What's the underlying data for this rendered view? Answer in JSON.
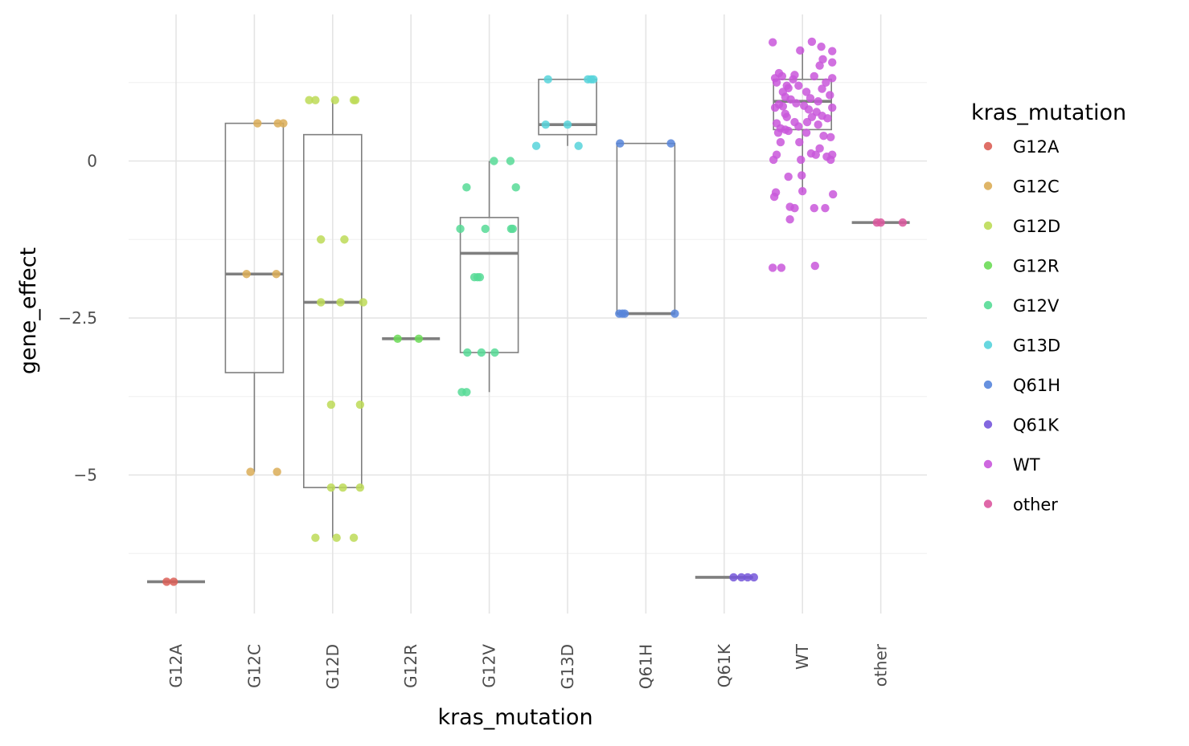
{
  "chart_data": {
    "type": "box+jitter",
    "xlabel": "kras_mutation",
    "ylabel": "gene_effect",
    "ylim": [
      -7.12,
      2.35
    ],
    "y_ticks": [
      0,
      -2.5,
      -5
    ],
    "y_tick_labels": [
      "0",
      "−2.5",
      "−5"
    ],
    "grid": true,
    "legend": {
      "title": "kras_mutation",
      "placement": "right"
    },
    "categories": [
      "G12A",
      "G12C",
      "G12D",
      "G12R",
      "G12V",
      "G13D",
      "Q61H",
      "Q61K",
      "WT",
      "other"
    ],
    "colors": {
      "G12A": "#db5f57",
      "G12C": "#dbad57",
      "G12D": "#bddb57",
      "G12R": "#6cdb57",
      "G12V": "#57db96",
      "G13D": "#57d3db",
      "Q61H": "#5785db",
      "Q61K": "#7657db",
      "WT": "#c957db",
      "other": "#db579e"
    },
    "boxes": [
      {
        "category": "G12A",
        "q1": -6.7,
        "median": -6.7,
        "q3": -6.7,
        "lo": -6.7,
        "hi": -6.7
      },
      {
        "category": "G12C",
        "q1": -3.37,
        "median": -1.8,
        "q3": 0.6,
        "lo": -4.95,
        "hi": 0.6
      },
      {
        "category": "G12D",
        "q1": -5.2,
        "median": -2.25,
        "q3": 0.42,
        "lo": -6.0,
        "hi": 0.97
      },
      {
        "category": "G12R",
        "q1": -2.83,
        "median": -2.83,
        "q3": -2.83,
        "lo": -2.83,
        "hi": -2.83
      },
      {
        "category": "G12V",
        "q1": -3.05,
        "median": -1.47,
        "q3": -0.9,
        "lo": -3.68,
        "hi": 0.0
      },
      {
        "category": "G13D",
        "q1": 0.42,
        "median": 0.58,
        "q3": 1.3,
        "lo": 0.24,
        "hi": 1.3
      },
      {
        "category": "Q61H",
        "q1": -2.43,
        "median": -2.43,
        "q3": 0.28,
        "lo": -2.43,
        "hi": 0.28
      },
      {
        "category": "Q61K",
        "q1": -6.63,
        "median": -6.63,
        "q3": -6.63,
        "lo": -6.63,
        "hi": -6.63
      },
      {
        "category": "WT",
        "q1": 0.5,
        "median": 0.95,
        "q3": 1.3,
        "lo": -0.5,
        "hi": 1.8
      },
      {
        "category": "other",
        "q1": -0.98,
        "median": -0.98,
        "q3": -0.98,
        "lo": -0.98,
        "hi": -0.98
      }
    ],
    "points": {
      "G12A": [
        [
          -0.12,
          -6.7
        ],
        [
          -0.03,
          -6.7
        ]
      ],
      "G12C": [
        [
          -0.1,
          -1.8
        ],
        [
          0.04,
          0.6
        ],
        [
          -0.05,
          -4.95
        ],
        [
          0.28,
          -1.8
        ],
        [
          0.3,
          0.6
        ],
        [
          0.37,
          0.6
        ],
        [
          0.29,
          -4.95
        ]
      ],
      "G12D": [
        [
          -0.3,
          0.97
        ],
        [
          -0.22,
          0.97
        ],
        [
          -0.15,
          -1.25
        ],
        [
          -0.15,
          -2.25
        ],
        [
          -0.22,
          -6.0
        ],
        [
          -0.02,
          -3.88
        ],
        [
          -0.02,
          -5.2
        ],
        [
          0.03,
          0.97
        ],
        [
          0.05,
          -6.0
        ],
        [
          0.1,
          -2.25
        ],
        [
          0.13,
          -5.2
        ],
        [
          0.15,
          -1.25
        ],
        [
          0.27,
          0.97
        ],
        [
          0.29,
          0.97
        ],
        [
          0.27,
          -6.0
        ],
        [
          0.35,
          -3.88
        ],
        [
          0.35,
          -5.2
        ],
        [
          0.39,
          -2.25
        ]
      ],
      "G12R": [
        [
          -0.17,
          -2.83
        ],
        [
          0.1,
          -2.83
        ]
      ],
      "G12V": [
        [
          -0.37,
          -1.08
        ],
        [
          -0.29,
          -0.42
        ],
        [
          -0.28,
          -3.05
        ],
        [
          -0.35,
          -3.68
        ],
        [
          -0.29,
          -3.68
        ],
        [
          -0.19,
          -1.85
        ],
        [
          -0.15,
          -1.85
        ],
        [
          -0.12,
          -1.85
        ],
        [
          -0.1,
          -3.05
        ],
        [
          -0.05,
          -1.08
        ],
        [
          0.06,
          0.0
        ],
        [
          0.07,
          -3.05
        ],
        [
          0.27,
          0.0
        ],
        [
          0.28,
          -1.08
        ],
        [
          0.3,
          -1.08
        ],
        [
          0.34,
          -0.42
        ]
      ],
      "G13D": [
        [
          -0.4,
          0.24
        ],
        [
          -0.25,
          1.3
        ],
        [
          -0.28,
          0.58
        ],
        [
          0.0,
          0.58
        ],
        [
          0.14,
          0.24
        ],
        [
          0.26,
          1.3
        ],
        [
          0.3,
          1.3
        ],
        [
          0.33,
          1.3
        ]
      ],
      "Q61H": [
        [
          -0.33,
          0.28
        ],
        [
          -0.34,
          -2.43
        ],
        [
          -0.3,
          -2.43
        ],
        [
          -0.27,
          -2.43
        ],
        [
          0.32,
          0.28
        ],
        [
          0.37,
          -2.43
        ]
      ],
      "Q61K": [
        [
          0.12,
          -6.63
        ],
        [
          0.22,
          -6.63
        ],
        [
          0.3,
          -6.63
        ],
        [
          0.38,
          -6.63
        ]
      ],
      "WT": [
        [
          -0.38,
          1.89
        ],
        [
          -0.33,
          0.6
        ],
        [
          -0.37,
          0.02
        ],
        [
          -0.34,
          -0.5
        ],
        [
          -0.36,
          -0.57
        ],
        [
          -0.38,
          -1.7
        ],
        [
          -0.27,
          -1.7
        ],
        [
          -0.28,
          0.3
        ],
        [
          -0.31,
          0.45
        ],
        [
          -0.33,
          0.1
        ],
        [
          -0.26,
          1.35
        ],
        [
          -0.35,
          0.85
        ],
        [
          -0.25,
          0.87
        ],
        [
          -0.22,
          0.75
        ],
        [
          -0.18,
          1.16
        ],
        [
          -0.22,
          0.5
        ],
        [
          -0.16,
          -0.73
        ],
        [
          -0.1,
          1.37
        ],
        [
          -0.16,
          -0.93
        ],
        [
          -0.18,
          -0.25
        ],
        [
          -0.1,
          -0.75
        ],
        [
          -0.03,
          1.76
        ],
        [
          -0.04,
          0.3
        ],
        [
          -0.02,
          0.02
        ],
        [
          -0.01,
          -0.23
        ],
        [
          0.0,
          -0.48
        ],
        [
          0.05,
          0.45
        ],
        [
          0.12,
          1.9
        ],
        [
          0.11,
          0.12
        ],
        [
          0.17,
          0.1
        ],
        [
          0.15,
          -0.75
        ],
        [
          0.16,
          -1.67
        ],
        [
          0.22,
          1.52
        ],
        [
          0.24,
          1.82
        ],
        [
          0.26,
          1.62
        ],
        [
          0.27,
          0.4
        ],
        [
          0.31,
          0.07
        ],
        [
          0.36,
          0.02
        ],
        [
          0.38,
          0.1
        ],
        [
          0.38,
          1.32
        ],
        [
          0.38,
          1.57
        ],
        [
          0.38,
          1.75
        ],
        [
          0.38,
          0.85
        ],
        [
          0.39,
          -0.53
        ],
        [
          0.29,
          -0.75
        ],
        [
          0.36,
          0.38
        ],
        [
          -0.35,
          1.32
        ],
        [
          -0.3,
          1.4
        ],
        [
          -0.25,
          1.1
        ],
        [
          -0.2,
          1.2
        ],
        [
          -0.12,
          1.3
        ],
        [
          -0.05,
          1.2
        ],
        [
          0.05,
          1.1
        ],
        [
          0.1,
          1.0
        ],
        [
          0.15,
          1.35
        ],
        [
          0.2,
          0.95
        ],
        [
          0.25,
          1.15
        ],
        [
          0.3,
          1.25
        ],
        [
          0.35,
          1.05
        ],
        [
          -0.3,
          0.9
        ],
        [
          -0.22,
          1.02
        ],
        [
          -0.15,
          0.98
        ],
        [
          -0.08,
          0.92
        ],
        [
          0.02,
          0.88
        ],
        [
          0.08,
          0.82
        ],
        [
          0.18,
          0.78
        ],
        [
          0.25,
          0.72
        ],
        [
          0.32,
          0.68
        ],
        [
          -0.28,
          0.52
        ],
        [
          -0.18,
          0.48
        ],
        [
          -0.05,
          0.55
        ],
        [
          0.06,
          0.62
        ],
        [
          0.2,
          0.58
        ],
        [
          -0.33,
          1.25
        ],
        [
          -0.2,
          0.7
        ],
        [
          -0.1,
          0.62
        ],
        [
          0.12,
          0.7
        ],
        [
          0.22,
          0.2
        ]
      ],
      "other": [
        [
          -0.05,
          -0.98
        ],
        [
          0.0,
          -0.98
        ],
        [
          0.28,
          -0.98
        ]
      ]
    }
  }
}
